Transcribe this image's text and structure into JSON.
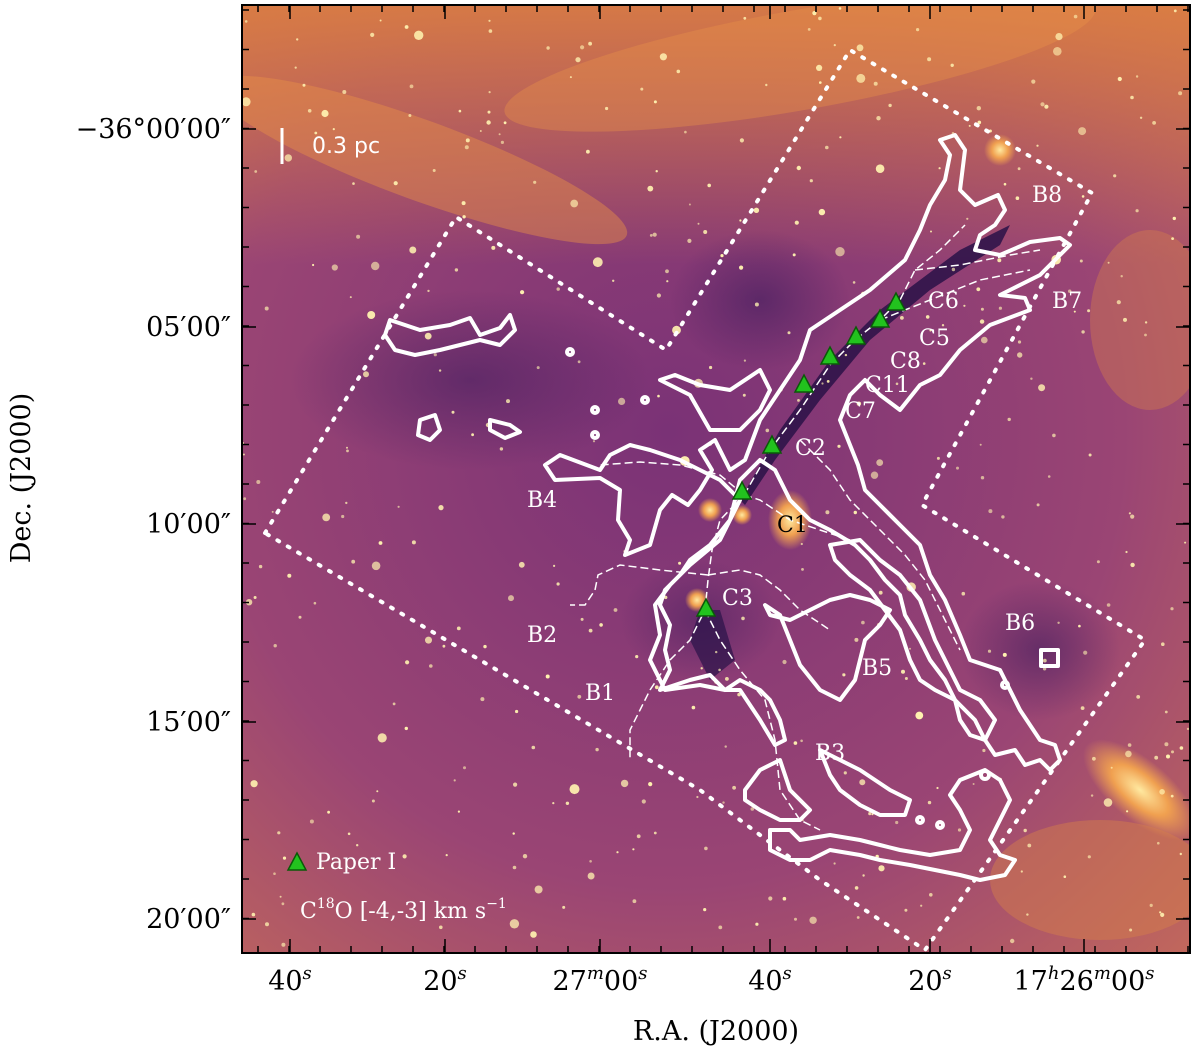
{
  "axes": {
    "xlabel": "R.A. (J2000)",
    "ylabel": "Dec. (J2000)",
    "xticks": [
      "40",
      "20",
      "27",
      "00",
      "40",
      "20",
      "17",
      "26",
      "00"
    ],
    "xtick_labels": [
      {
        "main": "40",
        "sup": "s"
      },
      {
        "main": "20",
        "sup": "s"
      },
      {
        "main": "27",
        "sup": "m",
        "main2": "00",
        "sup2": "s"
      },
      {
        "main": "40",
        "sup": "s"
      },
      {
        "main": "20",
        "sup": "s"
      },
      {
        "main": "17",
        "sup": "h",
        "main2": "26",
        "sup2": "m",
        "main3": "00",
        "sup3": "s"
      }
    ],
    "yticks": [
      "−36°00′00″",
      "05′00″",
      "10′00″",
      "15′00″",
      "20′00″"
    ]
  },
  "scalebar": {
    "label": "0.3 pc"
  },
  "legend": {
    "marker_label": "Paper I",
    "contour_label_prefix": "C",
    "contour_label_sup": "18",
    "contour_label_rest": "O [-4,-3] km s",
    "contour_label_exp": "−1"
  },
  "region_labels": {
    "B1": "B1",
    "B2": "B2",
    "B3": "B3",
    "B4": "B4",
    "B5": "B5",
    "B6": "B6",
    "B7": "B7",
    "B8": "B8",
    "C1": "C1",
    "C2": "C2",
    "C3": "C3",
    "C5": "C5",
    "C6": "C6",
    "C7": "C7",
    "C8": "C8",
    "C11": "C11"
  },
  "colors": {
    "background_image": "#8a3a78",
    "dark_filament": "#2a1248",
    "contour": "#ffffff",
    "marker_fill": "#22c21e",
    "marker_edge": "#0a5a08",
    "star": "#fff2b0"
  }
}
